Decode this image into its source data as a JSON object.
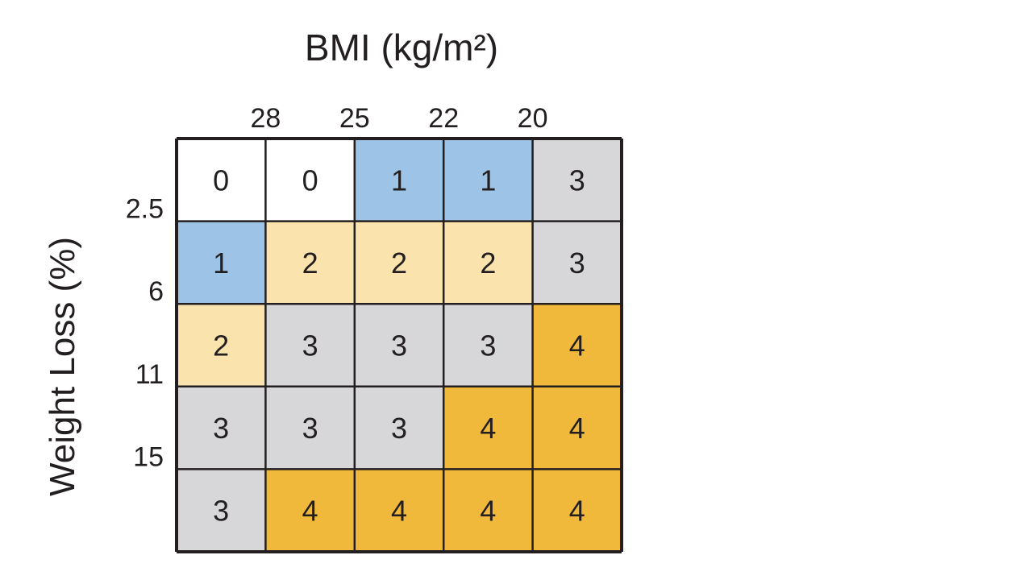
{
  "chart_data": {
    "type": "heatmap",
    "title": "BMI (kg/m²)",
    "xlabel": "BMI (kg/m²)",
    "ylabel": "Weight Loss (%)",
    "x_boundary_ticks": [
      "28",
      "25",
      "22",
      "20"
    ],
    "y_boundary_ticks": [
      "2.5",
      "6",
      "11",
      "15"
    ],
    "values": [
      [
        0,
        0,
        1,
        1,
        3
      ],
      [
        1,
        2,
        2,
        2,
        3
      ],
      [
        2,
        3,
        3,
        3,
        4
      ],
      [
        3,
        3,
        3,
        4,
        4
      ],
      [
        3,
        4,
        4,
        4,
        4
      ]
    ],
    "colors": {
      "0": "#ffffff",
      "1": "#9dc3e6",
      "2": "#fbe3ad",
      "3": "#d7d7d9",
      "4": "#f1b93b"
    },
    "grid": true
  }
}
